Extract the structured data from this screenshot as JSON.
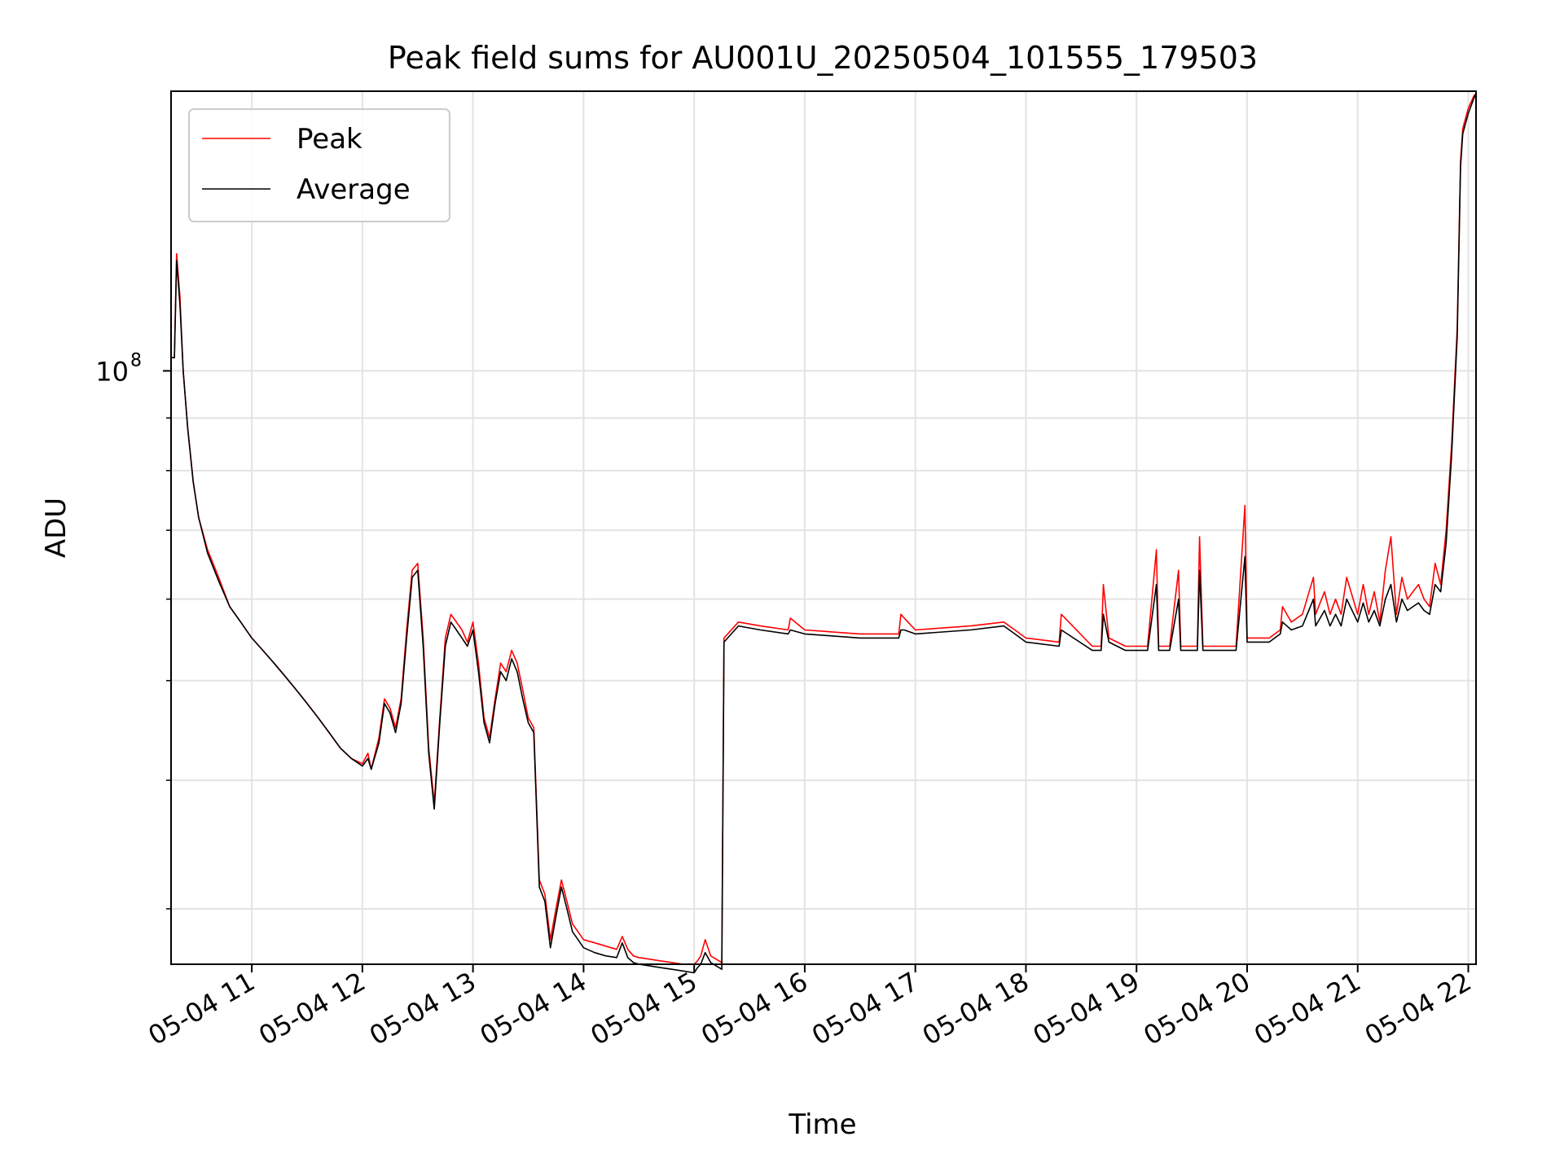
{
  "chart_data": {
    "type": "line",
    "title": "Peak field sums for AU001U_20250504_101555_179503",
    "xlabel": "Time",
    "ylabel": "ADU",
    "yscale": "log",
    "x_unit": "time of day (hours, 2025-05-04)",
    "xlim": [
      10.27,
      22.07
    ],
    "ylim": [
      26500000,
      187000000
    ],
    "grid": true,
    "legend_position": "top-left",
    "x_ticks": [
      {
        "value": 11,
        "label": "05-04 11"
      },
      {
        "value": 12,
        "label": "05-04 12"
      },
      {
        "value": 13,
        "label": "05-04 13"
      },
      {
        "value": 14,
        "label": "05-04 14"
      },
      {
        "value": 15,
        "label": "05-04 15"
      },
      {
        "value": 16,
        "label": "05-04 16"
      },
      {
        "value": 17,
        "label": "05-04 17"
      },
      {
        "value": 18,
        "label": "05-04 18"
      },
      {
        "value": 19,
        "label": "05-04 19"
      },
      {
        "value": 20,
        "label": "05-04 20"
      },
      {
        "value": 21,
        "label": "05-04 21"
      },
      {
        "value": 22,
        "label": "05-04 22"
      }
    ],
    "y_major_ticks": [
      {
        "value": 100000000,
        "base": "10",
        "exp": "8"
      }
    ],
    "y_minor_ticks": [
      30000000,
      40000000,
      50000000,
      60000000,
      70000000,
      80000000,
      90000000
    ],
    "series": [
      {
        "name": "Peak",
        "color": "#ff0000",
        "x": [
          10.27,
          10.3,
          10.32,
          10.35,
          10.38,
          10.42,
          10.47,
          10.52,
          10.6,
          10.7,
          10.8,
          10.9,
          11.0,
          11.1,
          11.2,
          11.3,
          11.4,
          11.5,
          11.6,
          11.7,
          11.8,
          11.9,
          12.0,
          12.05,
          12.08,
          12.15,
          12.2,
          12.25,
          12.3,
          12.35,
          12.4,
          12.45,
          12.5,
          12.55,
          12.6,
          12.65,
          12.7,
          12.75,
          12.8,
          12.85,
          12.9,
          12.95,
          13.0,
          13.05,
          13.1,
          13.15,
          13.2,
          13.25,
          13.3,
          13.35,
          13.4,
          13.45,
          13.5,
          13.55,
          13.6,
          13.65,
          13.7,
          13.75,
          13.8,
          13.85,
          13.9,
          13.95,
          14.0,
          14.1,
          14.2,
          14.3,
          14.35,
          14.4,
          14.45,
          14.5,
          14.6,
          14.7,
          14.8,
          14.9,
          15.0,
          15.03,
          15.06,
          15.1,
          15.15,
          15.25,
          15.27,
          15.4,
          15.6,
          15.85,
          15.87,
          16.0,
          16.5,
          16.85,
          16.87,
          16.9,
          17.0,
          17.5,
          17.8,
          17.9,
          18.0,
          18.3,
          18.32,
          18.6,
          18.68,
          18.7,
          18.75,
          18.9,
          18.98,
          19.1,
          19.18,
          19.2,
          19.3,
          19.38,
          19.4,
          19.5,
          19.55,
          19.57,
          19.6,
          19.7,
          19.9,
          19.98,
          20.0,
          20.2,
          20.3,
          20.32,
          20.4,
          20.5,
          20.6,
          20.62,
          20.7,
          20.75,
          20.8,
          20.85,
          20.9,
          21.0,
          21.05,
          21.1,
          21.15,
          21.2,
          21.25,
          21.3,
          21.35,
          21.4,
          21.45,
          21.5,
          21.55,
          21.6,
          21.65,
          21.7,
          21.75,
          21.8,
          21.85,
          21.9,
          21.93,
          21.95,
          22.0,
          22.05,
          22.07
        ],
        "y": [
          103000000,
          103000000,
          130000000,
          118000000,
          100000000,
          88000000,
          78000000,
          72000000,
          67000000,
          63000000,
          59000000,
          57000000,
          55000000,
          53500000,
          52000000,
          50500000,
          49000000,
          47500000,
          46000000,
          44500000,
          43000000,
          42000000,
          41500000,
          42500000,
          41000000,
          44000000,
          48000000,
          47000000,
          45000000,
          48000000,
          56000000,
          64000000,
          65000000,
          55000000,
          43000000,
          38000000,
          46000000,
          55000000,
          58000000,
          57000000,
          56000000,
          54500000,
          57000000,
          52000000,
          46000000,
          44000000,
          48000000,
          52000000,
          51000000,
          53500000,
          52000000,
          49000000,
          46000000,
          45000000,
          32000000,
          31000000,
          28000000,
          30000000,
          32000000,
          30500000,
          29000000,
          28500000,
          28000000,
          27800000,
          27600000,
          27400000,
          28200000,
          27400000,
          27000000,
          26900000,
          26800000,
          26700000,
          26600000,
          26500000,
          26500000,
          26700000,
          27000000,
          28000000,
          27000000,
          26600000,
          55000000,
          57000000,
          56500000,
          56000000,
          57500000,
          56000000,
          55500000,
          55500000,
          58000000,
          57500000,
          56000000,
          56500000,
          57000000,
          56000000,
          55000000,
          54500000,
          58000000,
          54000000,
          54000000,
          62000000,
          55000000,
          54000000,
          54000000,
          54000000,
          67000000,
          54000000,
          54000000,
          64000000,
          54000000,
          54000000,
          54000000,
          69000000,
          54000000,
          54000000,
          54000000,
          74000000,
          55000000,
          55000000,
          56000000,
          59000000,
          57000000,
          58000000,
          63000000,
          58000000,
          61000000,
          58000000,
          60000000,
          58000000,
          63000000,
          58000000,
          62000000,
          58000000,
          61000000,
          57000000,
          64000000,
          69000000,
          58000000,
          63000000,
          60000000,
          61000000,
          62000000,
          60000000,
          59000000,
          65000000,
          62000000,
          70000000,
          85000000,
          110000000,
          160000000,
          172000000,
          180000000,
          185000000,
          186000000
        ]
      },
      {
        "name": "Average",
        "color": "#000000",
        "x": [
          10.27,
          10.3,
          10.32,
          10.35,
          10.38,
          10.42,
          10.47,
          10.52,
          10.6,
          10.7,
          10.8,
          10.9,
          11.0,
          11.1,
          11.2,
          11.3,
          11.4,
          11.5,
          11.6,
          11.7,
          11.8,
          11.9,
          12.0,
          12.05,
          12.08,
          12.15,
          12.2,
          12.25,
          12.3,
          12.35,
          12.4,
          12.45,
          12.5,
          12.55,
          12.6,
          12.65,
          12.7,
          12.75,
          12.8,
          12.85,
          12.9,
          12.95,
          13.0,
          13.05,
          13.1,
          13.15,
          13.2,
          13.25,
          13.3,
          13.35,
          13.4,
          13.45,
          13.5,
          13.55,
          13.6,
          13.65,
          13.7,
          13.75,
          13.8,
          13.85,
          13.9,
          13.95,
          14.0,
          14.1,
          14.2,
          14.3,
          14.35,
          14.4,
          14.45,
          14.5,
          14.6,
          14.7,
          14.8,
          14.9,
          15.0,
          15.03,
          15.06,
          15.1,
          15.15,
          15.25,
          15.27,
          15.4,
          15.6,
          15.85,
          15.87,
          16.0,
          16.5,
          16.85,
          16.87,
          16.9,
          17.0,
          17.5,
          17.8,
          17.9,
          18.0,
          18.3,
          18.32,
          18.6,
          18.68,
          18.7,
          18.75,
          18.9,
          18.98,
          19.1,
          19.18,
          19.2,
          19.3,
          19.38,
          19.4,
          19.5,
          19.55,
          19.57,
          19.6,
          19.7,
          19.9,
          19.98,
          20.0,
          20.2,
          20.3,
          20.32,
          20.4,
          20.5,
          20.6,
          20.62,
          20.7,
          20.75,
          20.8,
          20.85,
          20.9,
          21.0,
          21.05,
          21.1,
          21.15,
          21.2,
          21.25,
          21.3,
          21.35,
          21.4,
          21.45,
          21.5,
          21.55,
          21.6,
          21.65,
          21.7,
          21.75,
          21.8,
          21.85,
          21.9,
          21.93,
          21.95,
          22.0,
          22.05,
          22.07
        ],
        "y": [
          103000000,
          103000000,
          128000000,
          116000000,
          100000000,
          88000000,
          78000000,
          72000000,
          66500000,
          62500000,
          59000000,
          57000000,
          55000000,
          53500000,
          52000000,
          50500000,
          49000000,
          47500000,
          46000000,
          44500000,
          43000000,
          42000000,
          41300000,
          42000000,
          41000000,
          43500000,
          47500000,
          46500000,
          44500000,
          47500000,
          55000000,
          63000000,
          64000000,
          54000000,
          42500000,
          37500000,
          45500000,
          54000000,
          57000000,
          56000000,
          55000000,
          54000000,
          56000000,
          51000000,
          45500000,
          43500000,
          47500000,
          51000000,
          50000000,
          52500000,
          51000000,
          48000000,
          45500000,
          44500000,
          31500000,
          30500000,
          27500000,
          29500000,
          31500000,
          30000000,
          28500000,
          28000000,
          27500000,
          27200000,
          27000000,
          26900000,
          27800000,
          26900000,
          26600000,
          26500000,
          26400000,
          26300000,
          26200000,
          26100000,
          26000000,
          26300000,
          26500000,
          27200000,
          26600000,
          26200000,
          54500000,
          56500000,
          56000000,
          55500000,
          56000000,
          55500000,
          55000000,
          55000000,
          56000000,
          56000000,
          55500000,
          56000000,
          56500000,
          55500000,
          54500000,
          54000000,
          56000000,
          53500000,
          53500000,
          58000000,
          54500000,
          53500000,
          53500000,
          53500000,
          62000000,
          53500000,
          53500000,
          60000000,
          53500000,
          53500000,
          53500000,
          64000000,
          53500000,
          53500000,
          53500000,
          66000000,
          54500000,
          54500000,
          55500000,
          57000000,
          56000000,
          56500000,
          60000000,
          56500000,
          58500000,
          56500000,
          58000000,
          56500000,
          60000000,
          57000000,
          59500000,
          57000000,
          58500000,
          56500000,
          60000000,
          62000000,
          57000000,
          60000000,
          58500000,
          59000000,
          59500000,
          58500000,
          58000000,
          62000000,
          61000000,
          68000000,
          83000000,
          108000000,
          158000000,
          170000000,
          178000000,
          184000000,
          186000000
        ]
      }
    ]
  }
}
